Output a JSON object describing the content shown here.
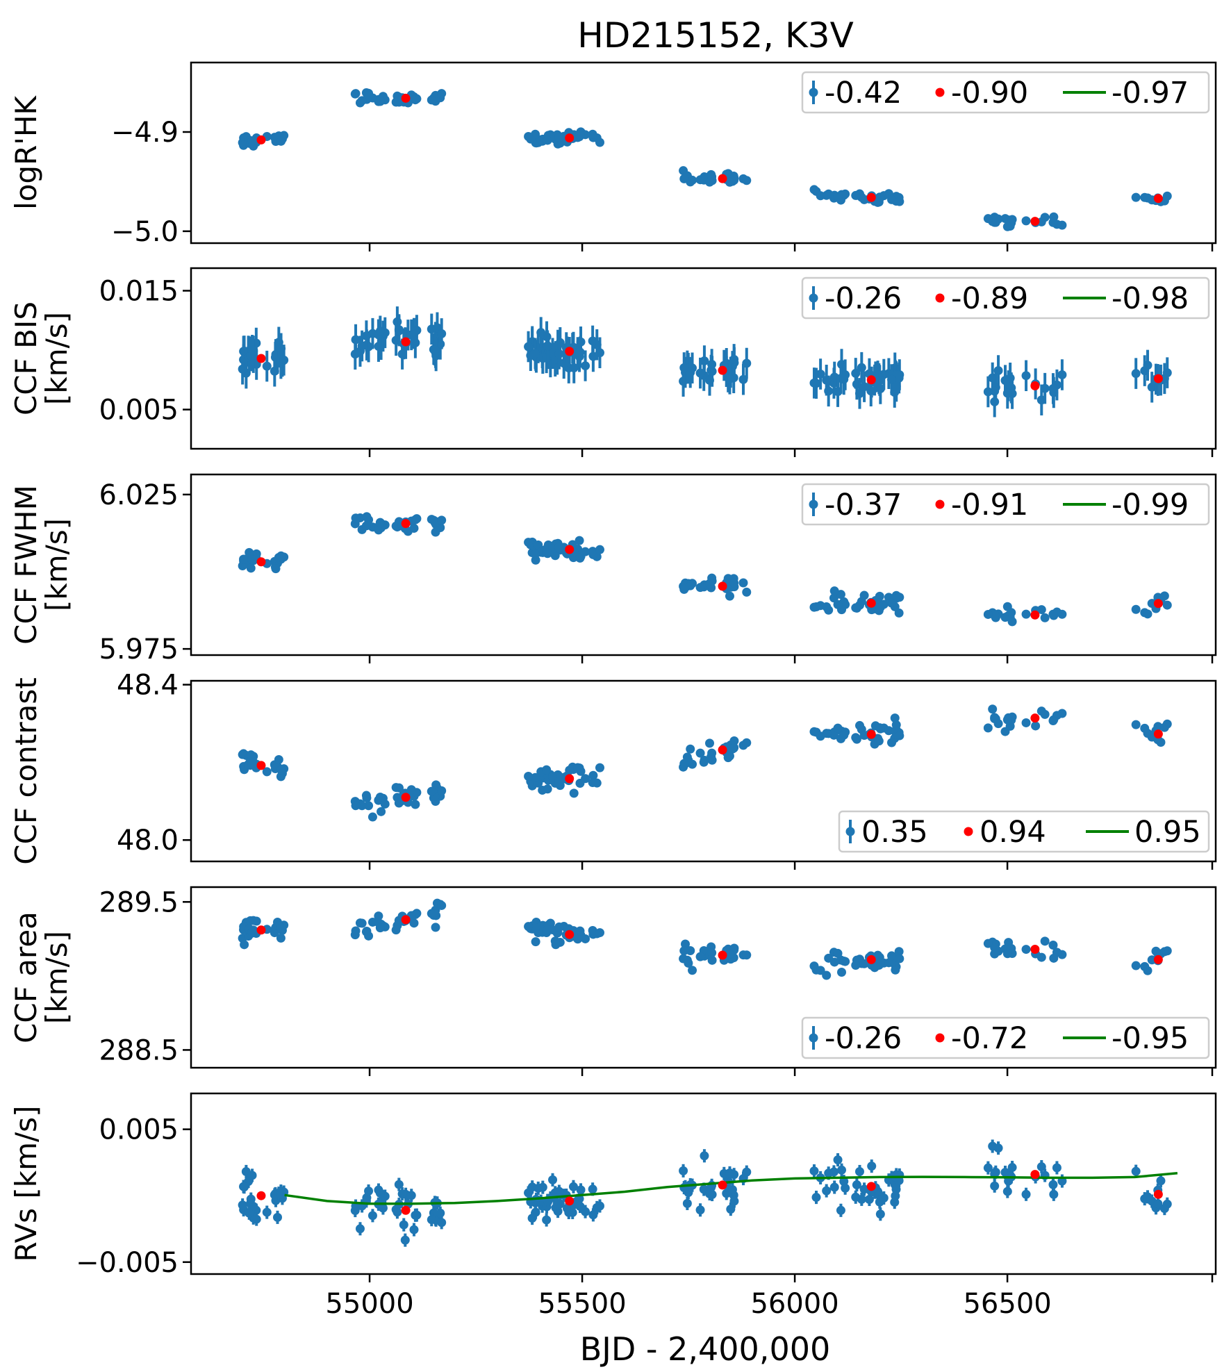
{
  "chart_data": {
    "type": "scatter",
    "title": "HD215152, K3V",
    "xlabel": "BJD - 2,400,000",
    "xlim": [
      54580,
      56990
    ],
    "x_ticks": [
      55000,
      55500,
      56000,
      56500
    ],
    "x_tick_labels": [
      "55000",
      "55500",
      "56000",
      "56500"
    ],
    "seasons": [
      {
        "center": 54745,
        "start": 54700,
        "end": 54800,
        "n": 24
      },
      {
        "center": 55085,
        "start": 54955,
        "end": 55170,
        "n": 36
      },
      {
        "center": 55470,
        "start": 55365,
        "end": 55545,
        "n": 40
      },
      {
        "center": 55830,
        "start": 55735,
        "end": 55890,
        "n": 26
      },
      {
        "center": 56180,
        "start": 56045,
        "end": 56260,
        "n": 36
      },
      {
        "center": 56565,
        "start": 56450,
        "end": 56630,
        "n": 20
      },
      {
        "center": 56855,
        "start": 56800,
        "end": 56895,
        "n": 10
      }
    ],
    "panels": [
      {
        "ylabel": [
          "logR'HK"
        ],
        "ylim": [
          -5.012,
          -4.83
        ],
        "y_ticks": [
          -4.9,
          -5.0
        ],
        "y_tick_labels": [
          "−4.9",
          "−5.0"
        ],
        "season_means": [
          -4.908,
          -4.866,
          -4.906,
          -4.947,
          -4.966,
          -4.99,
          -4.967
        ],
        "season_slopes": [
          0.024,
          0.012,
          0.008,
          -0.022,
          -0.03,
          -0.01,
          0.014
        ],
        "scatter": 0.006,
        "err": 0,
        "legend": [
          "-0.42",
          "-0.90",
          "-0.97"
        ],
        "legend_pos": "upper right"
      },
      {
        "ylabel": [
          "CCF BIS",
          "[km/s]"
        ],
        "ylim": [
          0.0017,
          0.0169
        ],
        "y_ticks": [
          0.015,
          0.005
        ],
        "y_tick_labels": [
          "0.015",
          "0.005"
        ],
        "season_means": [
          0.0093,
          0.0107,
          0.0099,
          0.0083,
          0.0075,
          0.007,
          0.0076
        ],
        "season_slopes": [
          0,
          0,
          0,
          0,
          0,
          0,
          0
        ],
        "scatter": 0.0012,
        "err": 0.0013,
        "legend": [
          "-0.26",
          "-0.89",
          "-0.98"
        ],
        "legend_pos": "upper right"
      },
      {
        "ylabel": [
          "CCF FWHM",
          "[km/s]"
        ],
        "ylim": [
          5.973,
          6.0315
        ],
        "y_ticks": [
          6.025,
          5.975
        ],
        "y_tick_labels": [
          "6.025",
          "5.975"
        ],
        "season_means": [
          6.0032,
          6.0156,
          6.0072,
          5.9953,
          5.9898,
          5.986,
          5.9897
        ],
        "season_slopes": [
          0.008,
          0.004,
          -0.006,
          -0.01,
          -0.006,
          -0.01,
          0.002
        ],
        "scatter": 0.003,
        "err": 0,
        "legend": [
          "-0.37",
          "-0.91",
          "-0.99"
        ],
        "legend_pos": "upper right"
      },
      {
        "ylabel": [
          "CCF contrast"
        ],
        "ylim": [
          47.945,
          48.41
        ],
        "y_ticks": [
          48.4,
          48.0
        ],
        "y_tick_labels": [
          "48.4",
          "48.0"
        ],
        "season_means": [
          48.192,
          48.11,
          48.158,
          48.232,
          48.272,
          48.314,
          48.273
        ],
        "season_slopes": [
          -0.05,
          0.05,
          0.03,
          0.08,
          0.05,
          0.01,
          0.02
        ],
        "scatter": 0.03,
        "err": 0,
        "legend": [
          "0.35",
          "0.94",
          "0.95"
        ],
        "legend_pos": "lower right"
      },
      {
        "ylabel": [
          "CCF area",
          "[km/s]"
        ],
        "ylim": [
          288.38,
          289.6
        ],
        "y_ticks": [
          289.5,
          288.5
        ],
        "y_tick_labels": [
          "289.5",
          "288.5"
        ],
        "season_means": [
          289.31,
          289.38,
          289.28,
          289.14,
          289.11,
          289.18,
          289.11
        ],
        "season_slopes": [
          0.04,
          0.1,
          -0.04,
          0.04,
          0.08,
          -0.04,
          0.1
        ],
        "scatter": 0.08,
        "err": 0,
        "legend": [
          "-0.26",
          "-0.72",
          "-0.95"
        ],
        "legend_pos": "lower right"
      },
      {
        "ylabel": [
          "RVs [km/s]"
        ],
        "ylim": [
          -0.0059,
          0.0077
        ],
        "y_ticks": [
          0.005,
          -0.005
        ],
        "y_tick_labels": [
          "0.005",
          "−0.005"
        ],
        "season_means": [
          0.0,
          -0.0011,
          -0.0004,
          0.0008,
          0.0007,
          0.0016,
          0.0001
        ],
        "season_slopes": [
          0,
          0.002,
          0.003,
          0.001,
          0.001,
          0.002,
          0.001
        ],
        "scatter": 0.0018,
        "err": 0.0005,
        "legend": [],
        "legend_pos": "none",
        "fit_curve": {
          "x": [
            54800,
            54900,
            55000,
            55100,
            55200,
            55300,
            55400,
            55500,
            55600,
            55700,
            55800,
            55900,
            56000,
            56100,
            56200,
            56300,
            56400,
            56500,
            56600,
            56700,
            56800,
            56900
          ],
          "y": [
            5e-05,
            -0.0004,
            -0.0006,
            -0.0006,
            -0.00055,
            -0.0004,
            -0.0002,
            5e-05,
            0.0003,
            0.00065,
            0.0009,
            0.00115,
            0.0013,
            0.00135,
            0.0014,
            0.00142,
            0.0014,
            0.00138,
            0.00135,
            0.00135,
            0.0014,
            0.0017
          ]
        }
      }
    ]
  },
  "colors": {
    "data": "#1f77b4",
    "season_mean": "#ff0000",
    "fit": "#008000"
  }
}
